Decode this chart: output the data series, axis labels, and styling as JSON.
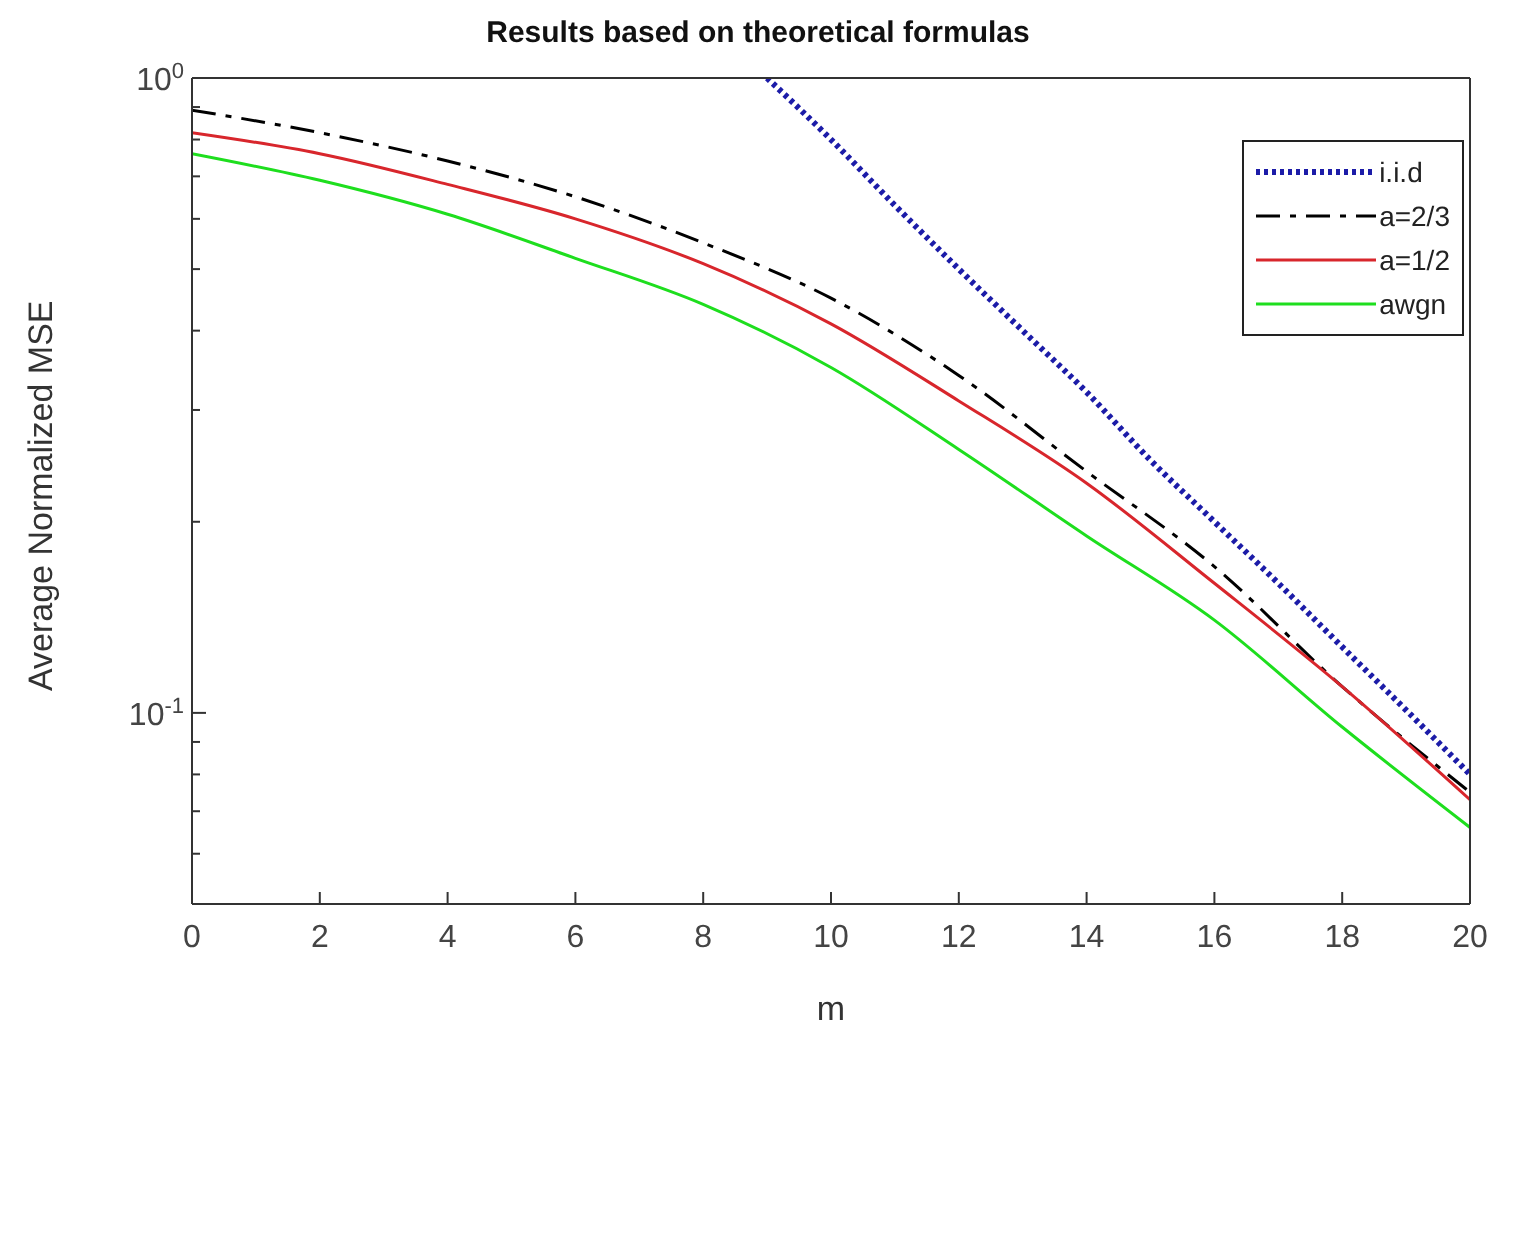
{
  "chart_data": {
    "type": "line",
    "title": "Results based on theoretical formulas",
    "xlabel": "m",
    "ylabel": "Average Normalized MSE",
    "log": "y",
    "legend": "top right",
    "marker": "none",
    "xlim": [
      0,
      20
    ],
    "xticks": [
      0,
      2,
      4,
      6,
      8,
      10,
      12,
      14,
      16,
      18,
      20
    ],
    "ylim": [
      0.05,
      1
    ],
    "yticks": [
      {
        "value": 0.05,
        "label": null
      },
      {
        "value": 0.06,
        "label": null
      },
      {
        "value": 0.07,
        "label": null
      },
      {
        "value": 0.08,
        "label": null
      },
      {
        "value": 0.09,
        "label": null
      },
      {
        "value": 0.1,
        "label": "10$^{-1}$"
      },
      {
        "value": 0.2,
        "label": null
      },
      {
        "value": 0.3,
        "label": null
      },
      {
        "value": 0.4,
        "label": null
      },
      {
        "value": 0.5,
        "label": null
      },
      {
        "value": 0.6,
        "label": null
      },
      {
        "value": 0.7,
        "label": null
      },
      {
        "value": 0.8,
        "label": null
      },
      {
        "value": 0.9,
        "label": null
      },
      {
        "value": 1,
        "label": "10$^{0}$"
      }
    ],
    "series": [
      {
        "name": "i.i.d",
        "color": "#1c1ca8",
        "line_style": "dotted",
        "x": [
          9,
          10,
          11,
          12,
          13,
          14,
          15,
          16,
          17,
          18,
          19,
          20
        ],
        "values": [
          1,
          0.8,
          0.63,
          0.5,
          0.4,
          0.32,
          0.25,
          0.2,
          0.16,
          0.127,
          0.101,
          0.08
        ]
      },
      {
        "name": "a=2/3",
        "color": "#000000",
        "line_style": "dashed",
        "x": [
          0,
          2,
          4,
          6,
          8,
          10,
          12,
          14,
          16,
          18,
          20
        ],
        "values": [
          0.89,
          0.82,
          0.74,
          0.65,
          0.55,
          0.45,
          0.34,
          0.24,
          0.17,
          0.11,
          0.075
        ]
      },
      {
        "name": "a=1/2",
        "color": "#d8262c",
        "line_style": "solid",
        "x": [
          0,
          2,
          4,
          6,
          8,
          10,
          12,
          14,
          16,
          18,
          20
        ],
        "values": [
          0.82,
          0.76,
          0.68,
          0.6,
          0.51,
          0.41,
          0.31,
          0.23,
          0.16,
          0.11,
          0.073
        ]
      },
      {
        "name": "awgn",
        "color": "#1ede1e",
        "line_style": "solid",
        "x": [
          0,
          2,
          4,
          6,
          8,
          10,
          12,
          14,
          16,
          18,
          20
        ],
        "values": [
          0.76,
          0.69,
          0.61,
          0.52,
          0.44,
          0.35,
          0.26,
          0.19,
          0.14,
          0.095,
          0.066
        ]
      }
    ]
  }
}
